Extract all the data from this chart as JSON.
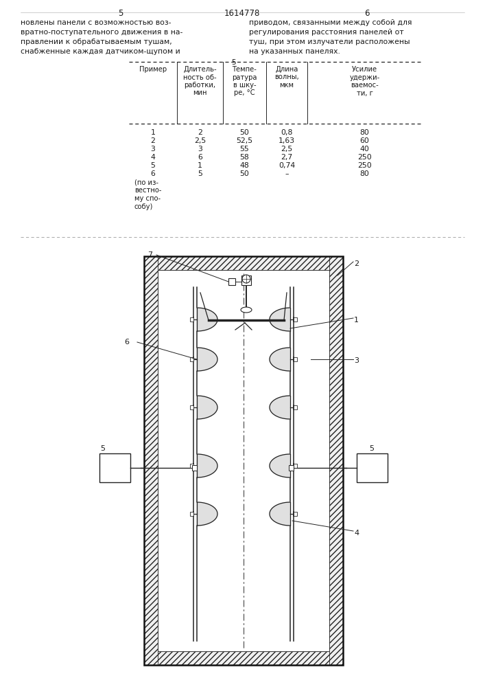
{
  "page_number_left": "5",
  "page_number_center": "1614778",
  "page_number_right": "6",
  "text_left": "новлены панели с возможностью воз-\nвратно-поступательного движения в на-\nправлении к обрабатываемым тушам,\nснабженные каждая датчиком-щупом и",
  "text_right": "приводом, связанными между собой для\nрегулирования расстояния панелей от\nтуш, при этом излучатели расположены\nна указанных панелях.",
  "bg_color": "#ffffff",
  "text_color": "#1a1a1a",
  "line_color": "#222222"
}
